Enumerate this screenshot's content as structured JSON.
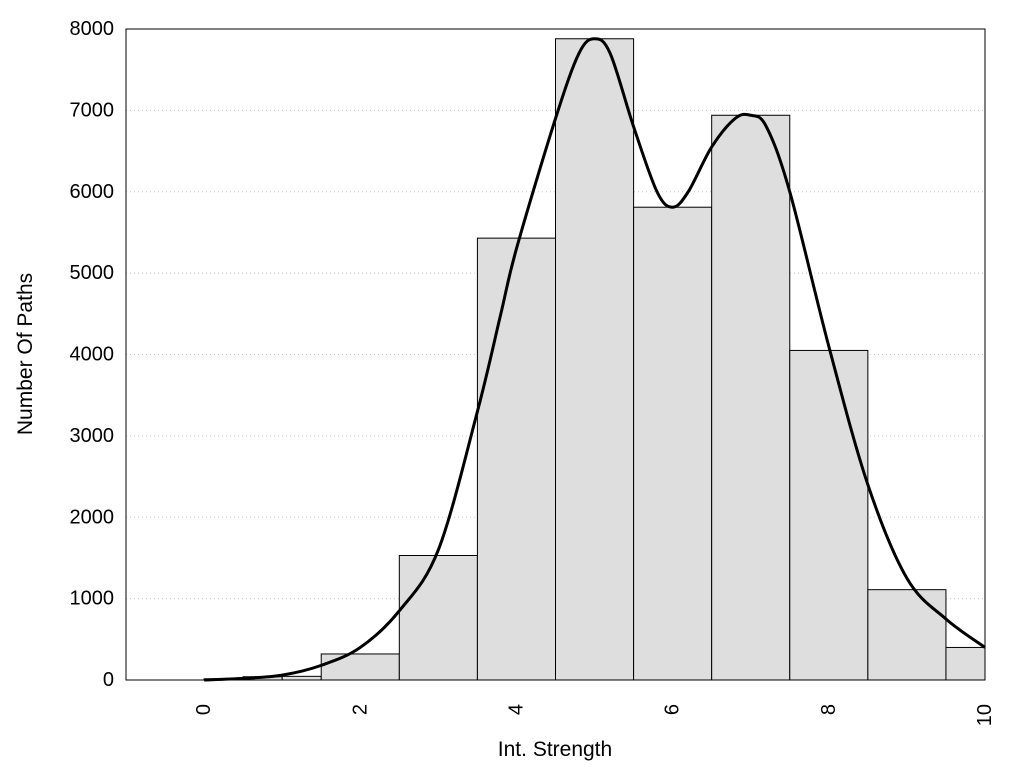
{
  "chart_data": {
    "type": "bar",
    "xlabel": "Int. Strength",
    "ylabel": "Number Of Paths",
    "xlim": [
      -1,
      10
    ],
    "ylim": [
      0,
      8000
    ],
    "x_ticks": [
      0,
      2,
      4,
      6,
      8,
      10
    ],
    "y_ticks": [
      0,
      1000,
      2000,
      3000,
      4000,
      5000,
      6000,
      7000,
      8000
    ],
    "grid": "y-dotted",
    "bars": [
      {
        "x0": 0.0,
        "x1": 0.5,
        "value": 15
      },
      {
        "x0": 0.5,
        "x1": 1.0,
        "value": 40
      },
      {
        "x0": 1.0,
        "x1": 1.5,
        "value": 45
      },
      {
        "x0": 1.5,
        "x1": 2.5,
        "value": 320
      },
      {
        "x0": 2.5,
        "x1": 3.5,
        "value": 1530
      },
      {
        "x0": 3.5,
        "x1": 4.5,
        "value": 5430
      },
      {
        "x0": 4.5,
        "x1": 5.5,
        "value": 7880
      },
      {
        "x0": 5.5,
        "x1": 6.5,
        "value": 5810
      },
      {
        "x0": 6.5,
        "x1": 7.5,
        "value": 6940
      },
      {
        "x0": 7.5,
        "x1": 8.5,
        "value": 4050
      },
      {
        "x0": 8.5,
        "x1": 9.5,
        "value": 1110
      },
      {
        "x0": 9.5,
        "x1": 10.0,
        "value": 400
      }
    ],
    "curve": {
      "x": [
        0,
        0.5,
        1,
        1.5,
        2,
        2.5,
        3,
        3.5,
        3.8,
        4,
        4.5,
        4.8,
        5,
        5.2,
        5.5,
        5.8,
        6,
        6.2,
        6.5,
        6.8,
        7,
        7.2,
        7.5,
        8,
        8.5,
        9,
        9.5,
        10
      ],
      "y": [
        0,
        20,
        60,
        180,
        400,
        850,
        1600,
        3300,
        4500,
        5300,
        6900,
        7700,
        7880,
        7700,
        6800,
        6000,
        5810,
        6000,
        6550,
        6900,
        6940,
        6800,
        6000,
        4100,
        2400,
        1250,
        750,
        400
      ]
    },
    "colors": {
      "bar_fill": "#dedede",
      "bar_stroke": "#000000",
      "curve": "#000000",
      "grid": "#c8c8c8"
    }
  }
}
